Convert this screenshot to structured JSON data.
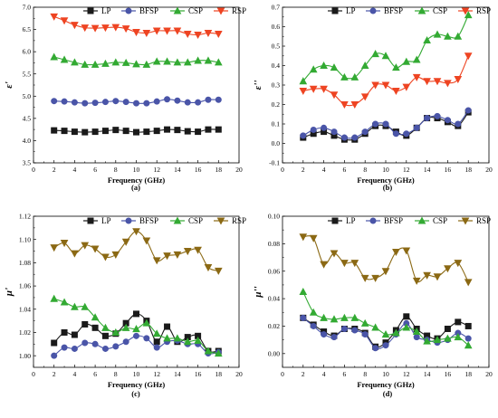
{
  "chart_data": [
    {
      "type": "line",
      "panel_label": "(a)",
      "xlabel": "Frequency (GHz)",
      "ylabel": "ε'",
      "xlim": [
        0,
        20
      ],
      "ylim": [
        3.5,
        7.0
      ],
      "xticks": [
        "0",
        "2",
        "4",
        "6",
        "8",
        "10",
        "12",
        "14",
        "16",
        "18",
        "20"
      ],
      "yticks": [
        "3.5",
        "4.0",
        "4.5",
        "5.0",
        "5.5",
        "6.0",
        "6.5",
        "7.0"
      ],
      "legend": "top",
      "x": [
        2,
        3,
        4,
        5,
        6,
        7,
        8,
        9,
        10,
        11,
        12,
        13,
        14,
        15,
        16,
        17,
        18
      ],
      "series": [
        {
          "name": "LP",
          "color": "#1a1a1a",
          "marker": "square",
          "values": [
            4.23,
            4.22,
            4.2,
            4.19,
            4.2,
            4.22,
            4.24,
            4.22,
            4.19,
            4.2,
            4.22,
            4.25,
            4.24,
            4.21,
            4.2,
            4.25,
            4.25
          ]
        },
        {
          "name": "BFSP",
          "color": "#4a55a8",
          "marker": "circle",
          "values": [
            4.89,
            4.88,
            4.86,
            4.84,
            4.85,
            4.87,
            4.89,
            4.87,
            4.84,
            4.84,
            4.88,
            4.93,
            4.9,
            4.86,
            4.86,
            4.92,
            4.92
          ]
        },
        {
          "name": "CSP",
          "color": "#33aa33",
          "marker": "triangle-up",
          "values": [
            5.88,
            5.82,
            5.76,
            5.71,
            5.71,
            5.73,
            5.76,
            5.75,
            5.72,
            5.71,
            5.78,
            5.78,
            5.76,
            5.76,
            5.8,
            5.8,
            5.76
          ]
        },
        {
          "name": "RSP",
          "color": "#ee4422",
          "marker": "triangle-down",
          "values": [
            6.79,
            6.7,
            6.6,
            6.54,
            6.53,
            6.54,
            6.55,
            6.52,
            6.44,
            6.42,
            6.47,
            6.47,
            6.47,
            6.4,
            6.38,
            6.42,
            6.4
          ]
        }
      ]
    },
    {
      "type": "line",
      "panel_label": "(b)",
      "xlabel": "Frequency (GHz)",
      "ylabel": "ε''",
      "xlim": [
        0,
        20
      ],
      "ylim": [
        -0.1,
        0.7
      ],
      "xticks": [
        "0",
        "2",
        "4",
        "6",
        "8",
        "10",
        "12",
        "14",
        "16",
        "18",
        "20"
      ],
      "yticks": [
        "-0.1",
        "0.0",
        "0.1",
        "0.2",
        "0.3",
        "0.4",
        "0.5",
        "0.6",
        "0.7"
      ],
      "legend": "top",
      "x": [
        2,
        3,
        4,
        5,
        6,
        7,
        8,
        9,
        10,
        11,
        12,
        13,
        14,
        15,
        16,
        17,
        18
      ],
      "series": [
        {
          "name": "LP",
          "color": "#1a1a1a",
          "marker": "square",
          "values": [
            0.03,
            0.05,
            0.06,
            0.04,
            0.02,
            0.02,
            0.05,
            0.09,
            0.09,
            0.06,
            0.04,
            0.08,
            0.13,
            0.13,
            0.11,
            0.09,
            0.16
          ]
        },
        {
          "name": "BFSP",
          "color": "#4a55a8",
          "marker": "circle",
          "values": [
            0.04,
            0.07,
            0.08,
            0.06,
            0.03,
            0.03,
            0.06,
            0.1,
            0.1,
            0.05,
            0.05,
            0.08,
            0.13,
            0.14,
            0.12,
            0.1,
            0.17
          ]
        },
        {
          "name": "CSP",
          "color": "#33aa33",
          "marker": "triangle-up",
          "values": [
            0.32,
            0.38,
            0.4,
            0.39,
            0.34,
            0.34,
            0.4,
            0.46,
            0.45,
            0.39,
            0.42,
            0.43,
            0.53,
            0.56,
            0.55,
            0.55,
            0.66
          ]
        },
        {
          "name": "RSP",
          "color": "#ee4422",
          "marker": "triangle-down",
          "values": [
            0.27,
            0.28,
            0.28,
            0.25,
            0.2,
            0.2,
            0.24,
            0.3,
            0.3,
            0.27,
            0.29,
            0.34,
            0.32,
            0.32,
            0.31,
            0.33,
            0.45
          ]
        }
      ]
    },
    {
      "type": "line",
      "panel_label": "(c)",
      "xlabel": "Frequency (GHz)",
      "ylabel": "μ'",
      "xlim": [
        0,
        20
      ],
      "ylim": [
        0.99,
        1.12
      ],
      "xticks": [
        "0",
        "2",
        "4",
        "6",
        "8",
        "10",
        "12",
        "14",
        "16",
        "18",
        "20"
      ],
      "yticks": [
        "1.00",
        "1.02",
        "1.04",
        "1.06",
        "1.08",
        "1.10",
        "1.12"
      ],
      "legend": "top",
      "x": [
        2,
        3,
        4,
        5,
        6,
        7,
        8,
        9,
        10,
        11,
        12,
        13,
        14,
        15,
        16,
        17,
        18
      ],
      "series": [
        {
          "name": "LP",
          "color": "#1a1a1a",
          "marker": "square",
          "values": [
            1.011,
            1.02,
            1.018,
            1.027,
            1.024,
            1.017,
            1.019,
            1.028,
            1.036,
            1.03,
            1.012,
            1.025,
            1.012,
            1.016,
            1.017,
            1.004,
            1.004
          ]
        },
        {
          "name": "BFSP",
          "color": "#4a55a8",
          "marker": "circle",
          "values": [
            1.0,
            1.007,
            1.006,
            1.011,
            1.01,
            1.006,
            1.008,
            1.012,
            1.017,
            1.015,
            1.007,
            1.012,
            1.013,
            1.01,
            1.01,
            1.002,
            1.003
          ]
        },
        {
          "name": "CSP",
          "color": "#33aa33",
          "marker": "triangle-up",
          "values": [
            1.049,
            1.046,
            1.042,
            1.042,
            1.033,
            1.024,
            1.02,
            1.024,
            1.023,
            1.028,
            1.019,
            1.015,
            1.015,
            1.012,
            1.013,
            1.004,
            1.002
          ]
        },
        {
          "name": "RSP",
          "color": "#8b6914",
          "marker": "triangle-down",
          "values": [
            1.093,
            1.097,
            1.088,
            1.095,
            1.092,
            1.085,
            1.087,
            1.098,
            1.107,
            1.099,
            1.082,
            1.086,
            1.087,
            1.09,
            1.091,
            1.076,
            1.073
          ]
        }
      ]
    },
    {
      "type": "line",
      "panel_label": "(d)",
      "xlabel": "Frequency (GHz)",
      "ylabel": "μ''",
      "xlim": [
        0,
        20
      ],
      "ylim": [
        -0.01,
        0.1
      ],
      "xticks": [
        "0",
        "2",
        "4",
        "6",
        "8",
        "10",
        "12",
        "14",
        "16",
        "18",
        "20"
      ],
      "yticks": [
        "0.00",
        "0.02",
        "0.04",
        "0.06",
        "0.08",
        "0.10"
      ],
      "legend": "top",
      "x": [
        2,
        3,
        4,
        5,
        6,
        7,
        8,
        9,
        10,
        11,
        12,
        13,
        14,
        15,
        16,
        17,
        18
      ],
      "series": [
        {
          "name": "LP",
          "color": "#1a1a1a",
          "marker": "square",
          "values": [
            0.026,
            0.021,
            0.016,
            0.013,
            0.018,
            0.018,
            0.015,
            0.005,
            0.008,
            0.017,
            0.027,
            0.018,
            0.013,
            0.011,
            0.018,
            0.023,
            0.02
          ]
        },
        {
          "name": "BFSP",
          "color": "#4a55a8",
          "marker": "circle",
          "values": [
            0.026,
            0.02,
            0.014,
            0.012,
            0.018,
            0.017,
            0.014,
            0.004,
            0.006,
            0.014,
            0.022,
            0.012,
            0.01,
            0.008,
            0.01,
            0.015,
            0.011
          ]
        },
        {
          "name": "CSP",
          "color": "#33aa33",
          "marker": "triangle-up",
          "values": [
            0.045,
            0.03,
            0.026,
            0.025,
            0.026,
            0.026,
            0.022,
            0.019,
            0.014,
            0.015,
            0.019,
            0.016,
            0.009,
            0.01,
            0.011,
            0.012,
            0.006
          ]
        },
        {
          "name": "RSP",
          "color": "#8b6914",
          "marker": "triangle-down",
          "values": [
            0.085,
            0.084,
            0.065,
            0.073,
            0.066,
            0.066,
            0.055,
            0.055,
            0.06,
            0.074,
            0.075,
            0.053,
            0.057,
            0.056,
            0.062,
            0.066,
            0.052
          ]
        }
      ]
    }
  ]
}
